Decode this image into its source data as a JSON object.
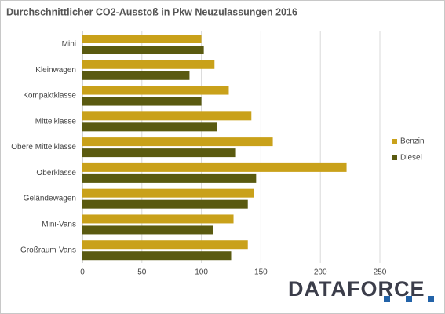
{
  "chart_data": {
    "type": "barh",
    "title": "Durchschnittlicher CO2-Ausstoß in Pkw Neuzulassungen 2016",
    "categories": [
      "Mini",
      "Kleinwagen",
      "Kompaktklasse",
      "Mittelklasse",
      "Obere Mittelklasse",
      "Oberklasse",
      "Geländewagen",
      "Mini-Vans",
      "Großraum-Vans"
    ],
    "series": [
      {
        "name": "Benzin",
        "color": "#c9a11a",
        "values": [
          100,
          111,
          123,
          142,
          160,
          222,
          144,
          127,
          139
        ]
      },
      {
        "name": "Diesel",
        "color": "#5a5a10",
        "values": [
          102,
          90,
          100,
          113,
          129,
          146,
          139,
          110,
          125
        ]
      }
    ],
    "xlim": [
      0,
      250
    ],
    "xticks": [
      0,
      50,
      100,
      150,
      200,
      250
    ],
    "grid": true,
    "legend": "right"
  },
  "logo": "DATAFORCE"
}
